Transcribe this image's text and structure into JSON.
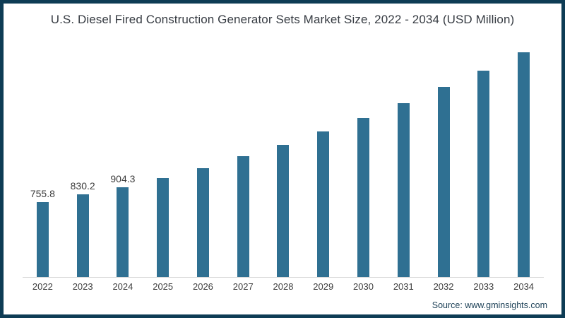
{
  "frame": {
    "border_color": "#0e3c55",
    "background": "#ffffff"
  },
  "header": {
    "title": "U.S. Diesel Fired Construction Generator Sets Market Size, 2022 - 2034 (USD Million)"
  },
  "footer": {
    "source": "Source: www.gminsights.com"
  },
  "chart_data": {
    "type": "bar",
    "title": "U.S. Diesel Fired Construction Generator Sets Market Size, 2022 - 2034 (USD Million)",
    "categories": [
      "2022",
      "2023",
      "2024",
      "2025",
      "2026",
      "2027",
      "2028",
      "2029",
      "2030",
      "2031",
      "2032",
      "2033",
      "2034"
    ],
    "values": [
      755.8,
      830.2,
      904.3,
      1000,
      1100,
      1215,
      1335,
      1465,
      1600,
      1750,
      1915,
      2080,
      2265
    ],
    "data_labels": [
      "755.8",
      "830.2",
      "904.3",
      "",
      "",
      "",
      "",
      "",
      "",
      "",
      "",
      "",
      ""
    ],
    "bar_color": "#2f7092",
    "axis_line_color": "#d9d9d9",
    "label_color": "#3d3d3d",
    "xlabel": "",
    "ylabel": "",
    "ylim": [
      0,
      2350
    ],
    "grid": false,
    "legend": false,
    "note": "Only the 2022-2024 bars display data labels in the chart; 2025-2034 values are estimated from bar heights."
  }
}
